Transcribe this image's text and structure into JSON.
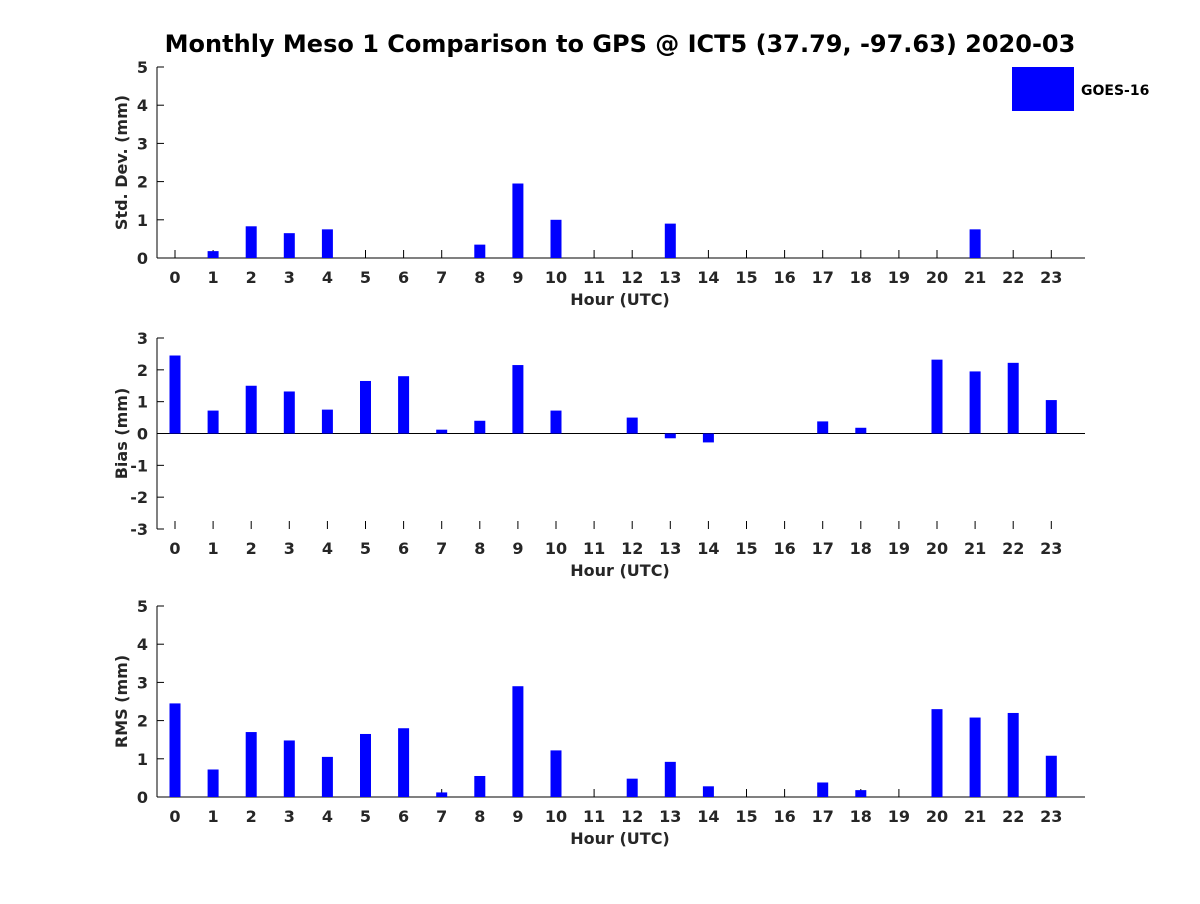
{
  "title": "Monthly Meso 1 Comparison to GPS @ ICT5 (37.79, -97.63) 2020-03",
  "legend": {
    "label": "GOES-16",
    "color": "#0000ff",
    "placement": "top-right"
  },
  "chart_data": [
    {
      "type": "bar",
      "id": "std",
      "ylabel": "Std. Dev. (mm)",
      "xlabel": "Hour (UTC)",
      "ylim": [
        0,
        5
      ],
      "yticks": [
        0,
        1,
        2,
        3,
        4,
        5
      ],
      "categories": [
        "0",
        "1",
        "2",
        "3",
        "4",
        "5",
        "6",
        "7",
        "8",
        "9",
        "10",
        "11",
        "12",
        "13",
        "14",
        "15",
        "16",
        "17",
        "18",
        "19",
        "20",
        "21",
        "22",
        "23"
      ],
      "series": [
        {
          "name": "GOES-16",
          "values": [
            0,
            0.18,
            0.83,
            0.65,
            0.75,
            0,
            0,
            0,
            0.35,
            1.95,
            1.0,
            0,
            0,
            0.9,
            0,
            0,
            0,
            0,
            0,
            0,
            0,
            0.75,
            0,
            0
          ]
        }
      ]
    },
    {
      "type": "bar",
      "id": "bias",
      "ylabel": "Bias (mm)",
      "xlabel": "Hour (UTC)",
      "ylim": [
        -3,
        3
      ],
      "yticks": [
        -3,
        -2,
        -1,
        0,
        1,
        2,
        3
      ],
      "categories": [
        "0",
        "1",
        "2",
        "3",
        "4",
        "5",
        "6",
        "7",
        "8",
        "9",
        "10",
        "11",
        "12",
        "13",
        "14",
        "15",
        "16",
        "17",
        "18",
        "19",
        "20",
        "21",
        "22",
        "23"
      ],
      "series": [
        {
          "name": "GOES-16",
          "values": [
            2.45,
            0.72,
            1.5,
            1.32,
            0.75,
            1.65,
            1.8,
            0.12,
            0.4,
            2.15,
            0.72,
            0,
            0.5,
            -0.15,
            -0.28,
            0,
            0,
            0.38,
            0.18,
            0,
            2.32,
            1.95,
            2.22,
            1.05
          ]
        }
      ]
    },
    {
      "type": "bar",
      "id": "rms",
      "ylabel": "RMS (mm)",
      "xlabel": "Hour (UTC)",
      "ylim": [
        0,
        5
      ],
      "yticks": [
        0,
        1,
        2,
        3,
        4,
        5
      ],
      "categories": [
        "0",
        "1",
        "2",
        "3",
        "4",
        "5",
        "6",
        "7",
        "8",
        "9",
        "10",
        "11",
        "12",
        "13",
        "14",
        "15",
        "16",
        "17",
        "18",
        "19",
        "20",
        "21",
        "22",
        "23"
      ],
      "series": [
        {
          "name": "GOES-16",
          "values": [
            2.45,
            0.72,
            1.7,
            1.48,
            1.05,
            1.65,
            1.8,
            0.12,
            0.55,
            2.9,
            1.22,
            0,
            0.48,
            0.92,
            0.28,
            0,
            0,
            0.38,
            0.18,
            0,
            2.3,
            2.08,
            2.2,
            1.08
          ]
        }
      ]
    }
  ]
}
